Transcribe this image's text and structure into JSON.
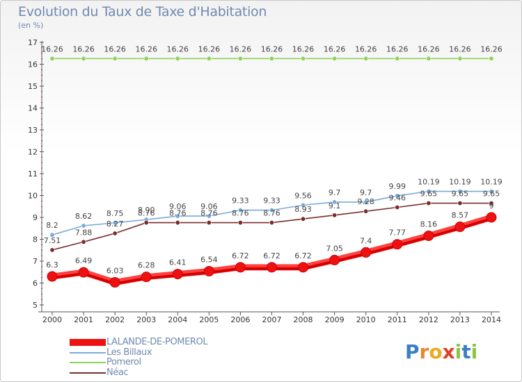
{
  "title": "Evolution du Taux de Taxe d'Habitation",
  "subtitle": "(en %)",
  "logo_text": "Proxiti",
  "chart_data": {
    "type": "line",
    "x": [
      2000,
      2001,
      2002,
      2003,
      2004,
      2005,
      2006,
      2007,
      2008,
      2009,
      2010,
      2011,
      2012,
      2013,
      2014
    ],
    "ylim": [
      5,
      17
    ],
    "yticks": [
      5,
      6,
      7,
      8,
      9,
      10,
      11,
      12,
      13,
      14,
      15,
      16,
      17
    ],
    "grid": false,
    "legend_position": "bottom-left",
    "series": [
      {
        "name": "Pomerol",
        "color": "#8fd25a",
        "values": [
          16.26,
          16.26,
          16.26,
          16.26,
          16.26,
          16.26,
          16.26,
          16.26,
          16.26,
          16.26,
          16.26,
          16.26,
          16.26,
          16.26,
          16.26
        ],
        "labels": [
          "16.26",
          "16.26",
          "16.26",
          "16.26",
          "16.26",
          "16.26",
          "16.26",
          "16.26",
          "16.26",
          "16.26",
          "16.26",
          "16.26",
          "16.26",
          "16.26",
          "16.26"
        ]
      },
      {
        "name": "Les Billaux",
        "color": "#7aaad8",
        "values": [
          8.2,
          8.62,
          8.75,
          8.9,
          9.06,
          9.06,
          9.33,
          9.33,
          9.56,
          9.7,
          9.7,
          9.99,
          10.19,
          10.19,
          10.19
        ],
        "labels": [
          "8.2",
          "8.62",
          "8.75",
          "8.90",
          "9.06",
          "9.06",
          "9.33",
          "9.33",
          "9.56",
          "9.7",
          "9.7",
          "9.99",
          "10.19",
          "10.19",
          "10.19"
        ]
      },
      {
        "name": "Néac",
        "color": "#7a2c2c",
        "values": [
          7.51,
          7.88,
          8.27,
          8.76,
          8.76,
          8.76,
          8.76,
          8.76,
          8.93,
          9.1,
          9.28,
          9.46,
          9.65,
          9.65,
          9.65
        ],
        "labels": [
          "7.51",
          "7.88",
          "8.27",
          "8.76",
          "8.76",
          "8.76",
          "8.76",
          "8.76",
          "8.93",
          "9.1",
          "9.28",
          "9.46",
          "9.65",
          "9.65",
          "9.65"
        ]
      },
      {
        "name": "LALANDE-DE-POMEROL",
        "color": "#ee1111",
        "values": [
          6.3,
          6.49,
          6.03,
          6.28,
          6.41,
          6.54,
          6.72,
          6.72,
          6.72,
          7.05,
          7.4,
          7.77,
          8.16,
          8.57,
          9.0
        ],
        "labels": [
          "6.3",
          "6.49",
          "6.03",
          "6.28",
          "6.41",
          "6.54",
          "6.72",
          "6.72",
          "6.72",
          "7.05",
          "7.4",
          "7.77",
          "8.16",
          "8.57",
          "9"
        ]
      }
    ],
    "legend_order": [
      "LALANDE-DE-POMEROL",
      "Les Billaux",
      "Pomerol",
      "Néac"
    ]
  }
}
